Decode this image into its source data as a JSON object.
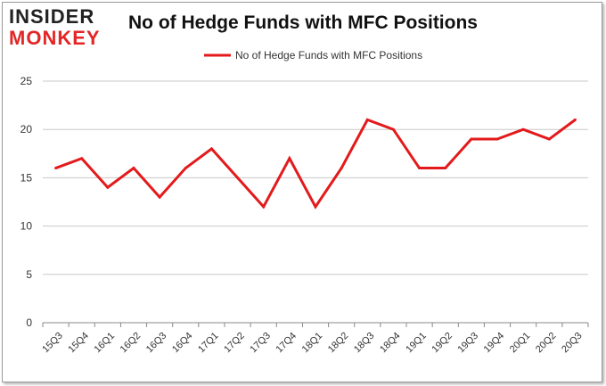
{
  "logo": {
    "top": "INSIDER",
    "bottom": "MONKEY"
  },
  "chart_data": {
    "type": "line",
    "title": "No of Hedge Funds with MFC Positions",
    "xlabel": "",
    "ylabel": "",
    "ylim": [
      0,
      25
    ],
    "yticks": [
      0,
      5,
      10,
      15,
      20,
      25
    ],
    "grid": true,
    "legend": "top",
    "categories": [
      "15Q3",
      "15Q4",
      "16Q1",
      "16Q2",
      "16Q3",
      "16Q4",
      "17Q1",
      "17Q2",
      "17Q3",
      "17Q4",
      "18Q1",
      "18Q2",
      "18Q3",
      "18Q4",
      "19Q1",
      "19Q2",
      "19Q3",
      "19Q4",
      "20Q1",
      "20Q2",
      "20Q3"
    ],
    "series": [
      {
        "name": "No of Hedge Funds with MFC Positions",
        "color": "#e31a1c",
        "values": [
          16,
          17,
          14,
          16,
          13,
          16,
          18,
          15,
          12,
          17,
          12,
          16,
          21,
          20,
          16,
          16,
          19,
          19,
          20,
          19,
          21
        ]
      }
    ]
  }
}
